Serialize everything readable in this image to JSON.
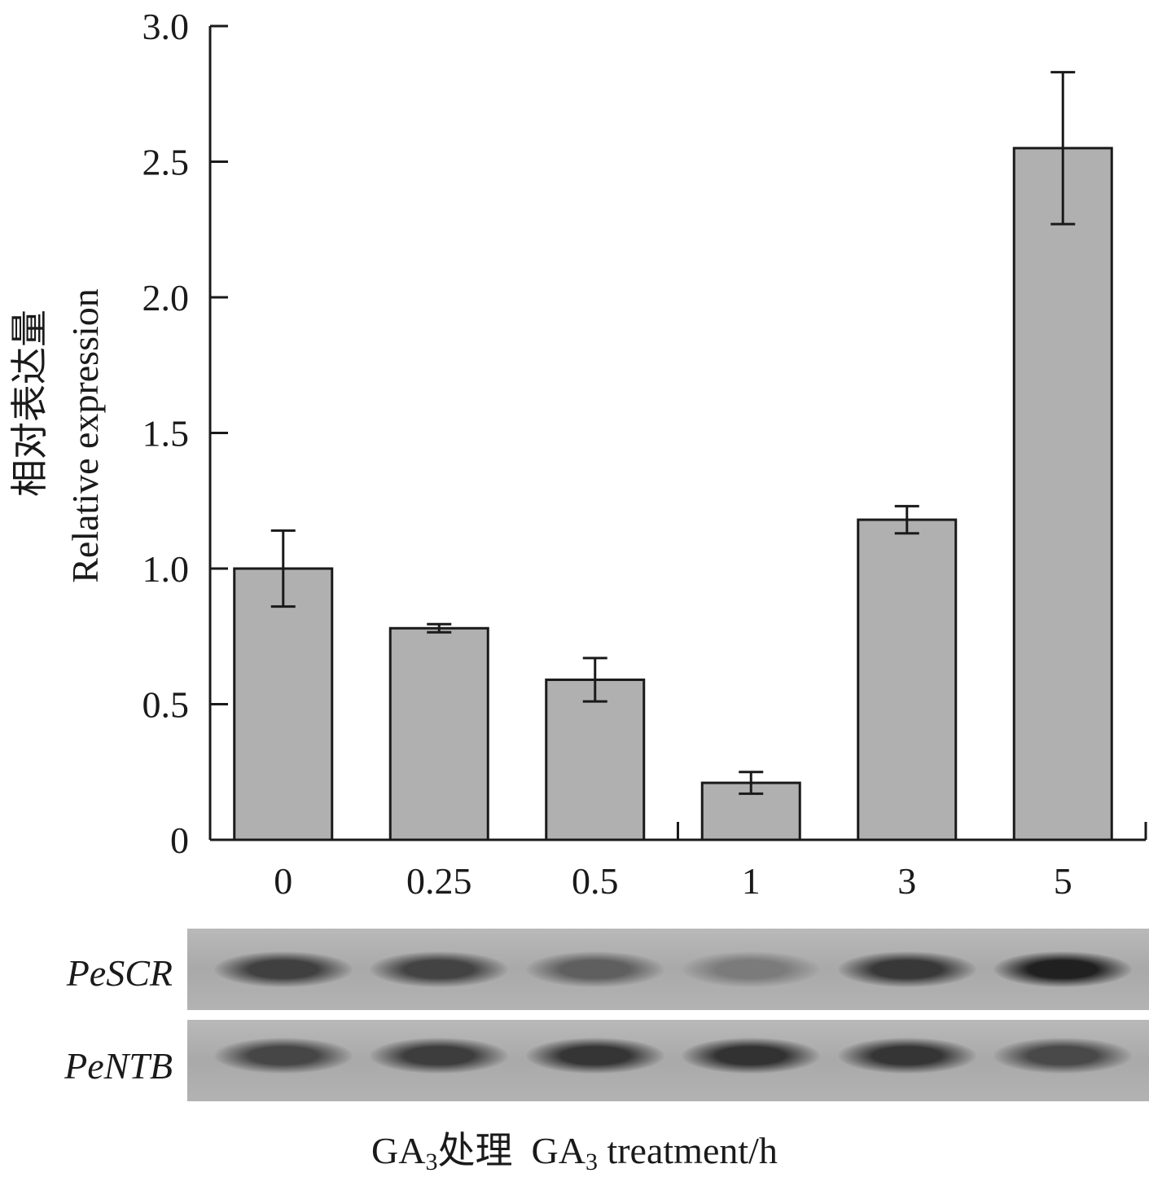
{
  "chart_data": {
    "type": "bar",
    "categories": [
      "0",
      "0.25",
      "0.5",
      "1",
      "3",
      "5"
    ],
    "values": [
      1.0,
      0.78,
      0.59,
      0.21,
      1.18,
      2.55
    ],
    "error": [
      0.14,
      0.015,
      0.08,
      0.04,
      0.05,
      0.28
    ],
    "ylim": [
      0,
      3.0
    ],
    "yticks": [
      0,
      0.5,
      1.0,
      1.5,
      2.0,
      2.5,
      3.0
    ],
    "ytick_labels": [
      "0",
      "0.5",
      "1.0",
      "1.5",
      "2.0",
      "2.5",
      "3.0"
    ],
    "ylabel_cn": "相对表达量",
    "ylabel_en": "Relative expression",
    "xlabel_parts": {
      "prefix_cn_a": "GA",
      "sub_a": "3",
      "cn": "处理  ",
      "prefix_en_b": "GA",
      "sub_b": "3",
      "en": " treatment/h"
    },
    "grid": false,
    "bar_color": "#b0b0b0"
  },
  "gels": [
    {
      "gene": "PeSCR",
      "band_intensity": [
        0.72,
        0.7,
        0.5,
        0.3,
        0.78,
        0.95
      ]
    },
    {
      "gene": "PeNTB",
      "band_intensity": [
        0.68,
        0.74,
        0.8,
        0.82,
        0.8,
        0.66
      ]
    }
  ]
}
